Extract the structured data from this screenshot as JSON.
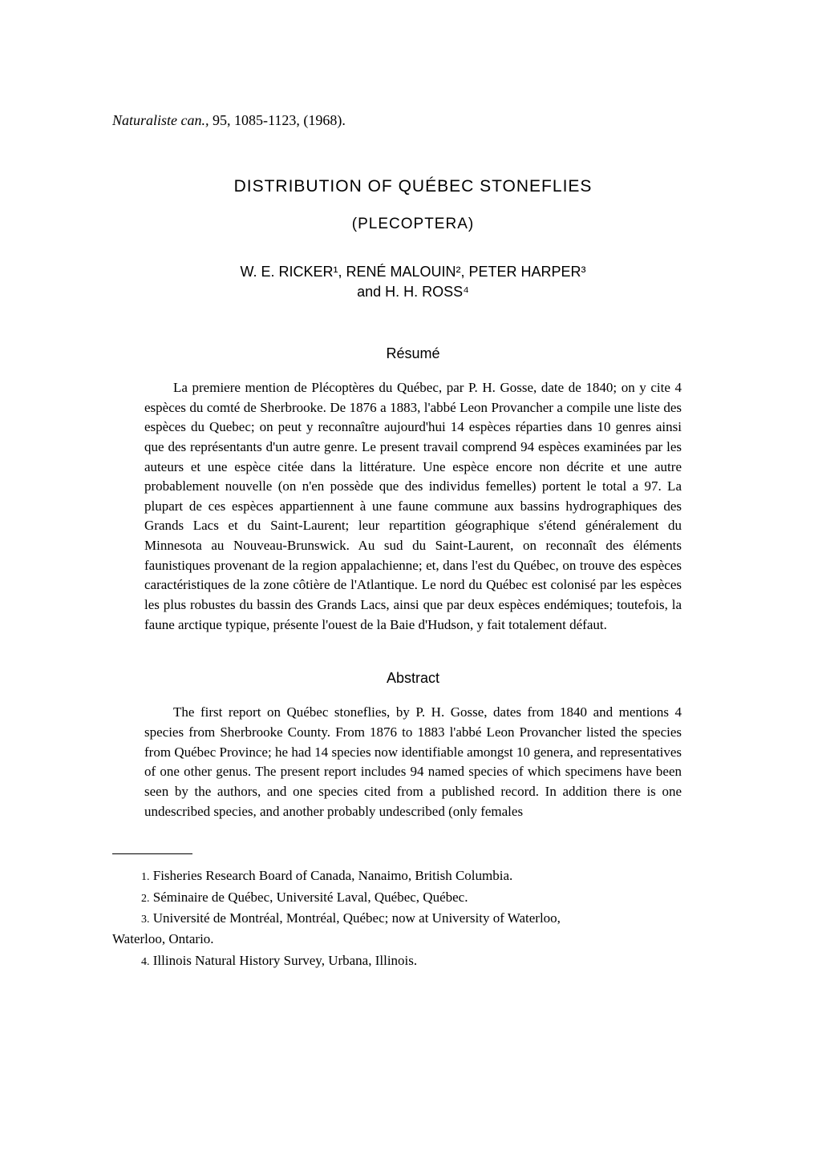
{
  "journal": {
    "name": "Naturaliste can.,",
    "vol": "95,",
    "pages": "1085-1123, (1968)."
  },
  "title": "DISTRIBUTION OF QUÉBEC STONEFLIES",
  "subtitle": "(PLECOPTERA)",
  "authors_line1": "W. E. RICKER¹, RENÉ MALOUIN², PETER HARPER³",
  "authors_line2": "and H. H. ROSS⁴",
  "resume_heading": "Résumé",
  "resume_text": "La premiere mention de Plécoptères du Québec, par P. H. Gosse, date de 1840; on y cite 4 espèces du comté de Sherbrooke. De 1876 a 1883, l'abbé Leon Provancher a compile une liste des espèces du Quebec; on peut y reconnaître aujourd'hui 14 espèces réparties dans 10 genres ainsi que des représentants d'un autre genre. Le present travail comprend 94 espèces examinées par les auteurs et une espèce citée dans la littérature. Une espèce encore non décrite et une autre probablement nouvelle (on n'en possède que des individus femelles) portent le total a 97. La plupart de ces espèces appartiennent à une faune commune aux bassins hydrographiques des Grands Lacs et du Saint-Laurent; leur repartition géographique s'étend généralement du Minnesota au Nouveau-Brunswick. Au sud du Saint-Laurent, on reconnaît des éléments faunistiques provenant de la region appalachienne; et, dans l'est du Québec, on trouve des espèces caractéristiques de la zone côtière de l'Atlantique. Le nord du Québec est colonisé par les espèces les plus robustes du bassin des Grands Lacs, ainsi que par deux espèces endémiques; toutefois, la faune arctique typique, présente l'ouest de la Baie d'Hudson, y fait totalement défaut.",
  "abstract_heading": "Abstract",
  "abstract_text": "The first report on Québec stoneflies, by P. H. Gosse, dates from 1840 and mentions 4 species from Sherbrooke County. From 1876 to 1883 l'abbé Leon Provancher listed the species from Québec Province; he had 14 species now identifiable amongst 10 genera, and representatives of one other genus. The present report includes 94 named species of which specimens have been seen by the authors, and one species cited from a published record. In addition there is one undescribed species, and another probably undescribed (only females",
  "affiliations": [
    {
      "num": "1.",
      "text": "Fisheries Research Board of Canada, Nanaimo, British Columbia."
    },
    {
      "num": "2.",
      "text": "Séminaire de Québec, Université Laval, Québec, Québec."
    },
    {
      "num": "3.",
      "text": "Université de Montréal, Montréal, Québec; now at University of Waterloo,"
    },
    {
      "num": "4.",
      "text": "Illinois Natural History Survey, Urbana, Illinois."
    }
  ],
  "affil3_wrap": "Waterloo, Ontario."
}
